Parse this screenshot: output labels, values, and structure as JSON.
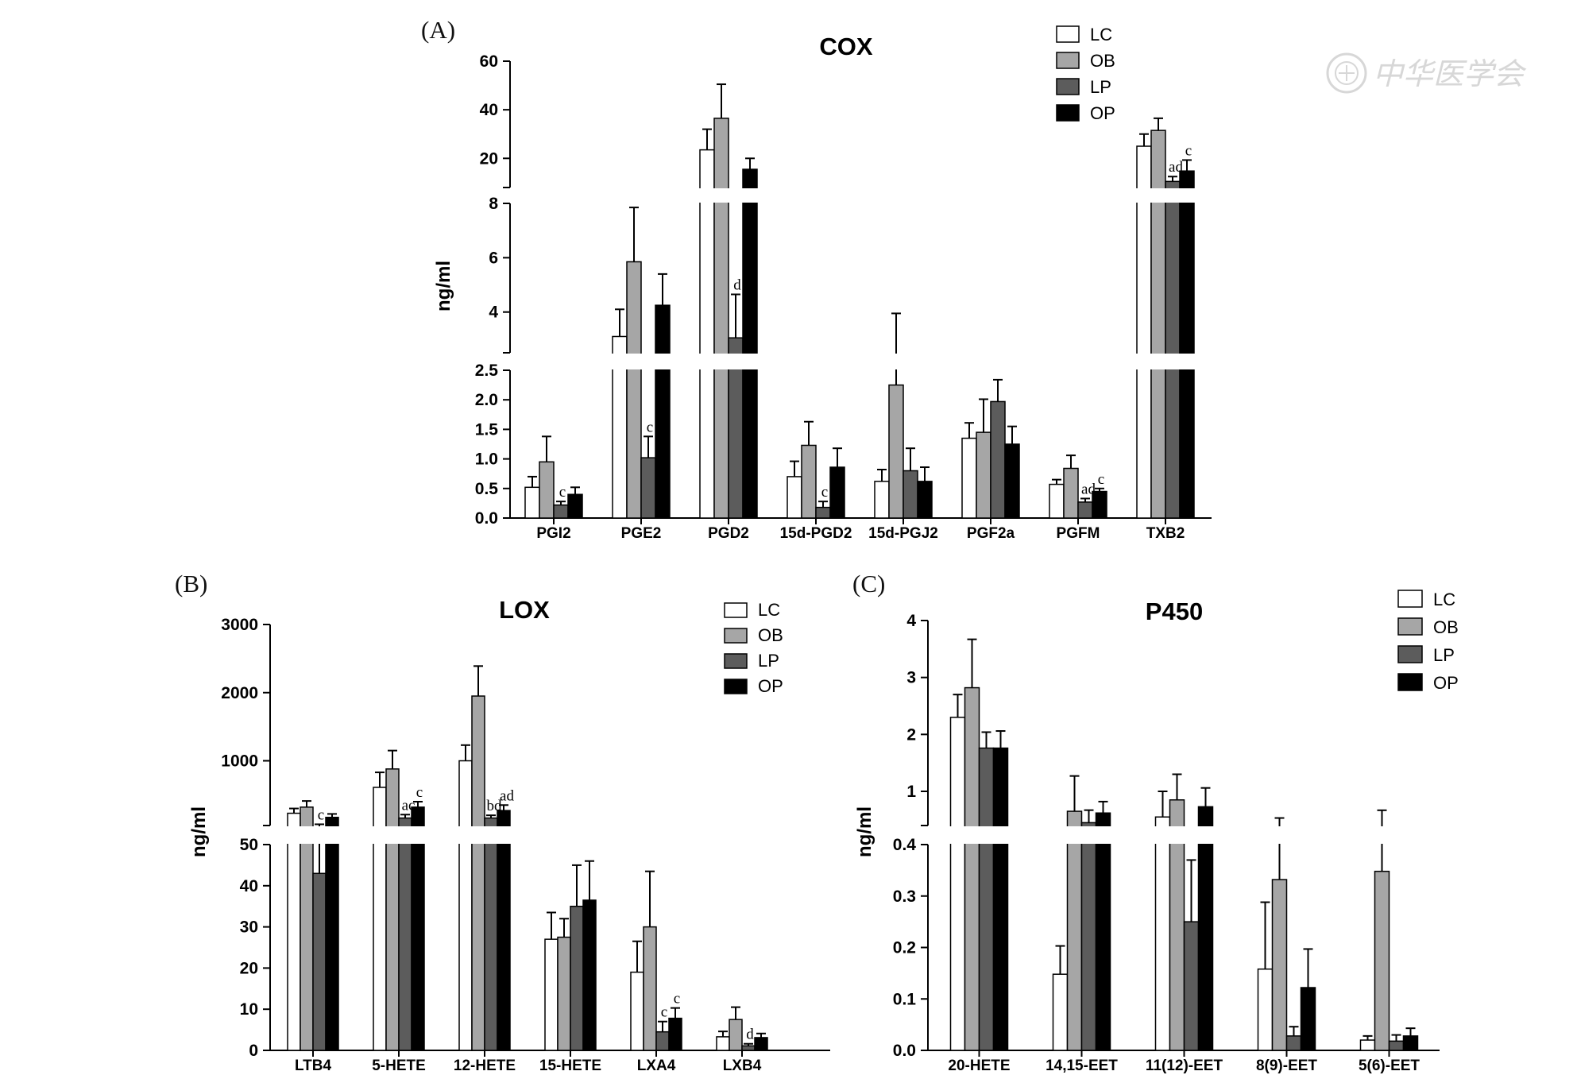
{
  "colors": {
    "LC": "#ffffff",
    "OB": "#a6a6a6",
    "LP": "#5c5c5c",
    "OP": "#000000"
  },
  "watermark": {
    "text": "中华医学会",
    "icon": "society-seal-icon"
  },
  "chart_data": [
    {
      "type": "bar",
      "panel_label": "(A)",
      "title": "COX",
      "ylabel": "ng/ml",
      "legend_position": "top-right",
      "series_names": [
        "LC",
        "OB",
        "LP",
        "OP"
      ],
      "categories": [
        "PGI2",
        "PGE2",
        "PGD2",
        "15d-PGD2",
        "15d-PGJ2",
        "PGF2a",
        "PGFM",
        "TXB2"
      ],
      "y_segments": [
        {
          "range": [
            0,
            2.5
          ],
          "ticks": [
            "0.0",
            "0.5",
            "1.0",
            "1.5",
            "2.0",
            "2.5"
          ]
        },
        {
          "range": [
            2.5,
            8
          ],
          "ticks": [
            "4",
            "6",
            "8"
          ]
        },
        {
          "range": [
            8,
            60
          ],
          "ticks": [
            "20",
            "40",
            "60"
          ]
        }
      ],
      "series": [
        {
          "name": "LC",
          "values": [
            0.52,
            3.1,
            23.5,
            0.7,
            0.62,
            1.35,
            0.57,
            25
          ],
          "errors": [
            0.18,
            1.0,
            8.5,
            0.26,
            0.2,
            0.26,
            0.08,
            5
          ]
        },
        {
          "name": "OB",
          "values": [
            0.95,
            5.85,
            36.5,
            1.23,
            2.25,
            1.45,
            0.84,
            31.5
          ],
          "errors": [
            0.43,
            2.0,
            14,
            0.4,
            1.7,
            0.56,
            0.22,
            5
          ]
        },
        {
          "name": "LP",
          "values": [
            0.22,
            1.02,
            3.05,
            0.18,
            0.8,
            1.97,
            0.27,
            10.5
          ],
          "errors": [
            0.06,
            0.36,
            1.6,
            0.1,
            0.38,
            0.37,
            0.06,
            2
          ]
        },
        {
          "name": "OP",
          "values": [
            0.4,
            4.25,
            15.5,
            0.86,
            0.62,
            1.25,
            0.45,
            14.8
          ],
          "errors": [
            0.12,
            1.15,
            4.5,
            0.32,
            0.24,
            0.3,
            0.05,
            4.5
          ]
        }
      ],
      "annotations": [
        {
          "category": "PGI2",
          "series": "LP",
          "text": "c"
        },
        {
          "category": "PGE2",
          "series": "LP",
          "text": "c"
        },
        {
          "category": "PGD2",
          "series": "LP",
          "text": "d"
        },
        {
          "category": "15d-PGD2",
          "series": "LP",
          "text": "c"
        },
        {
          "category": "PGFM",
          "series": "LP",
          "text": "ad"
        },
        {
          "category": "PGFM",
          "series": "OP",
          "text": "c"
        },
        {
          "category": "TXB2",
          "series": "LP",
          "text": "ad"
        },
        {
          "category": "TXB2",
          "series": "OP",
          "text": "c"
        }
      ]
    },
    {
      "type": "bar",
      "panel_label": "(B)",
      "title": "LOX",
      "ylabel": "ng/ml",
      "legend_position": "top-right",
      "series_names": [
        "LC",
        "OB",
        "LP",
        "OP"
      ],
      "categories": [
        "LTB4",
        "5-HETE",
        "12-HETE",
        "15-HETE",
        "LXA4",
        "LXB4"
      ],
      "y_segments": [
        {
          "range": [
            0,
            50
          ],
          "ticks": [
            "0",
            "10",
            "20",
            "30",
            "40",
            "50"
          ]
        },
        {
          "range": [
            50,
            3000
          ],
          "ticks": [
            "1000",
            "2000",
            "3000"
          ]
        }
      ],
      "series": [
        {
          "name": "LC",
          "values": [
            230,
            610,
            1000,
            27,
            19,
            3.3
          ],
          "errors": [
            70,
            220,
            230,
            6.5,
            7.5,
            1.3
          ]
        },
        {
          "name": "OB",
          "values": [
            320,
            880,
            1950,
            27.5,
            30,
            7.5
          ],
          "errors": [
            90,
            270,
            440,
            4.5,
            13.5,
            3
          ]
        },
        {
          "name": "LP",
          "values": [
            43,
            160,
            160,
            35,
            4.5,
            1.1
          ],
          "errors": [
            25,
            50,
            40,
            10,
            2.5,
            0.5
          ]
        },
        {
          "name": "OP",
          "values": [
            170,
            320,
            270,
            36.5,
            7.8,
            3.1
          ],
          "errors": [
            50,
            80,
            80,
            9.5,
            2.5,
            1.0
          ]
        }
      ],
      "annotations": [
        {
          "category": "LTB4",
          "series": "LP",
          "text": "c"
        },
        {
          "category": "5-HETE",
          "series": "LP",
          "text": "ac"
        },
        {
          "category": "5-HETE",
          "series": "OP",
          "text": "c"
        },
        {
          "category": "12-HETE",
          "series": "LP",
          "text": "bd"
        },
        {
          "category": "12-HETE",
          "series": "OP",
          "text": "ad"
        },
        {
          "category": "LXA4",
          "series": "LP",
          "text": "c"
        },
        {
          "category": "LXA4",
          "series": "OP",
          "text": "c"
        },
        {
          "category": "LXB4",
          "series": "LP",
          "text": "d"
        }
      ]
    },
    {
      "type": "bar",
      "panel_label": "(C)",
      "title": "P450",
      "ylabel": "ng/ml",
      "legend_position": "top-right",
      "series_names": [
        "LC",
        "OB",
        "LP",
        "OP"
      ],
      "categories": [
        "20-HETE",
        "14,15-EET",
        "11(12)-EET",
        "8(9)-EET",
        "5(6)-EET"
      ],
      "y_segments": [
        {
          "range": [
            0,
            0.4
          ],
          "ticks": [
            "0.0",
            "0.1",
            "0.2",
            "0.3",
            "0.4"
          ]
        },
        {
          "range": [
            0.4,
            4
          ],
          "ticks": [
            "1",
            "2",
            "3",
            "4"
          ]
        }
      ],
      "series": [
        {
          "name": "LC",
          "values": [
            2.3,
            0.148,
            0.55,
            0.158,
            0.02
          ],
          "errors": [
            0.4,
            0.055,
            0.45,
            0.13,
            0.008
          ]
        },
        {
          "name": "OB",
          "values": [
            2.82,
            0.65,
            0.85,
            0.332,
            0.348
          ],
          "errors": [
            0.85,
            0.62,
            0.45,
            0.2,
            0.32
          ]
        },
        {
          "name": "LP",
          "values": [
            1.76,
            0.45,
            0.25,
            0.028,
            0.018
          ],
          "errors": [
            0.28,
            0.22,
            0.12,
            0.018,
            0.012
          ]
        },
        {
          "name": "OP",
          "values": [
            1.76,
            0.62,
            0.73,
            0.122,
            0.028
          ],
          "errors": [
            0.3,
            0.2,
            0.33,
            0.075,
            0.015
          ]
        }
      ],
      "annotations": []
    }
  ]
}
